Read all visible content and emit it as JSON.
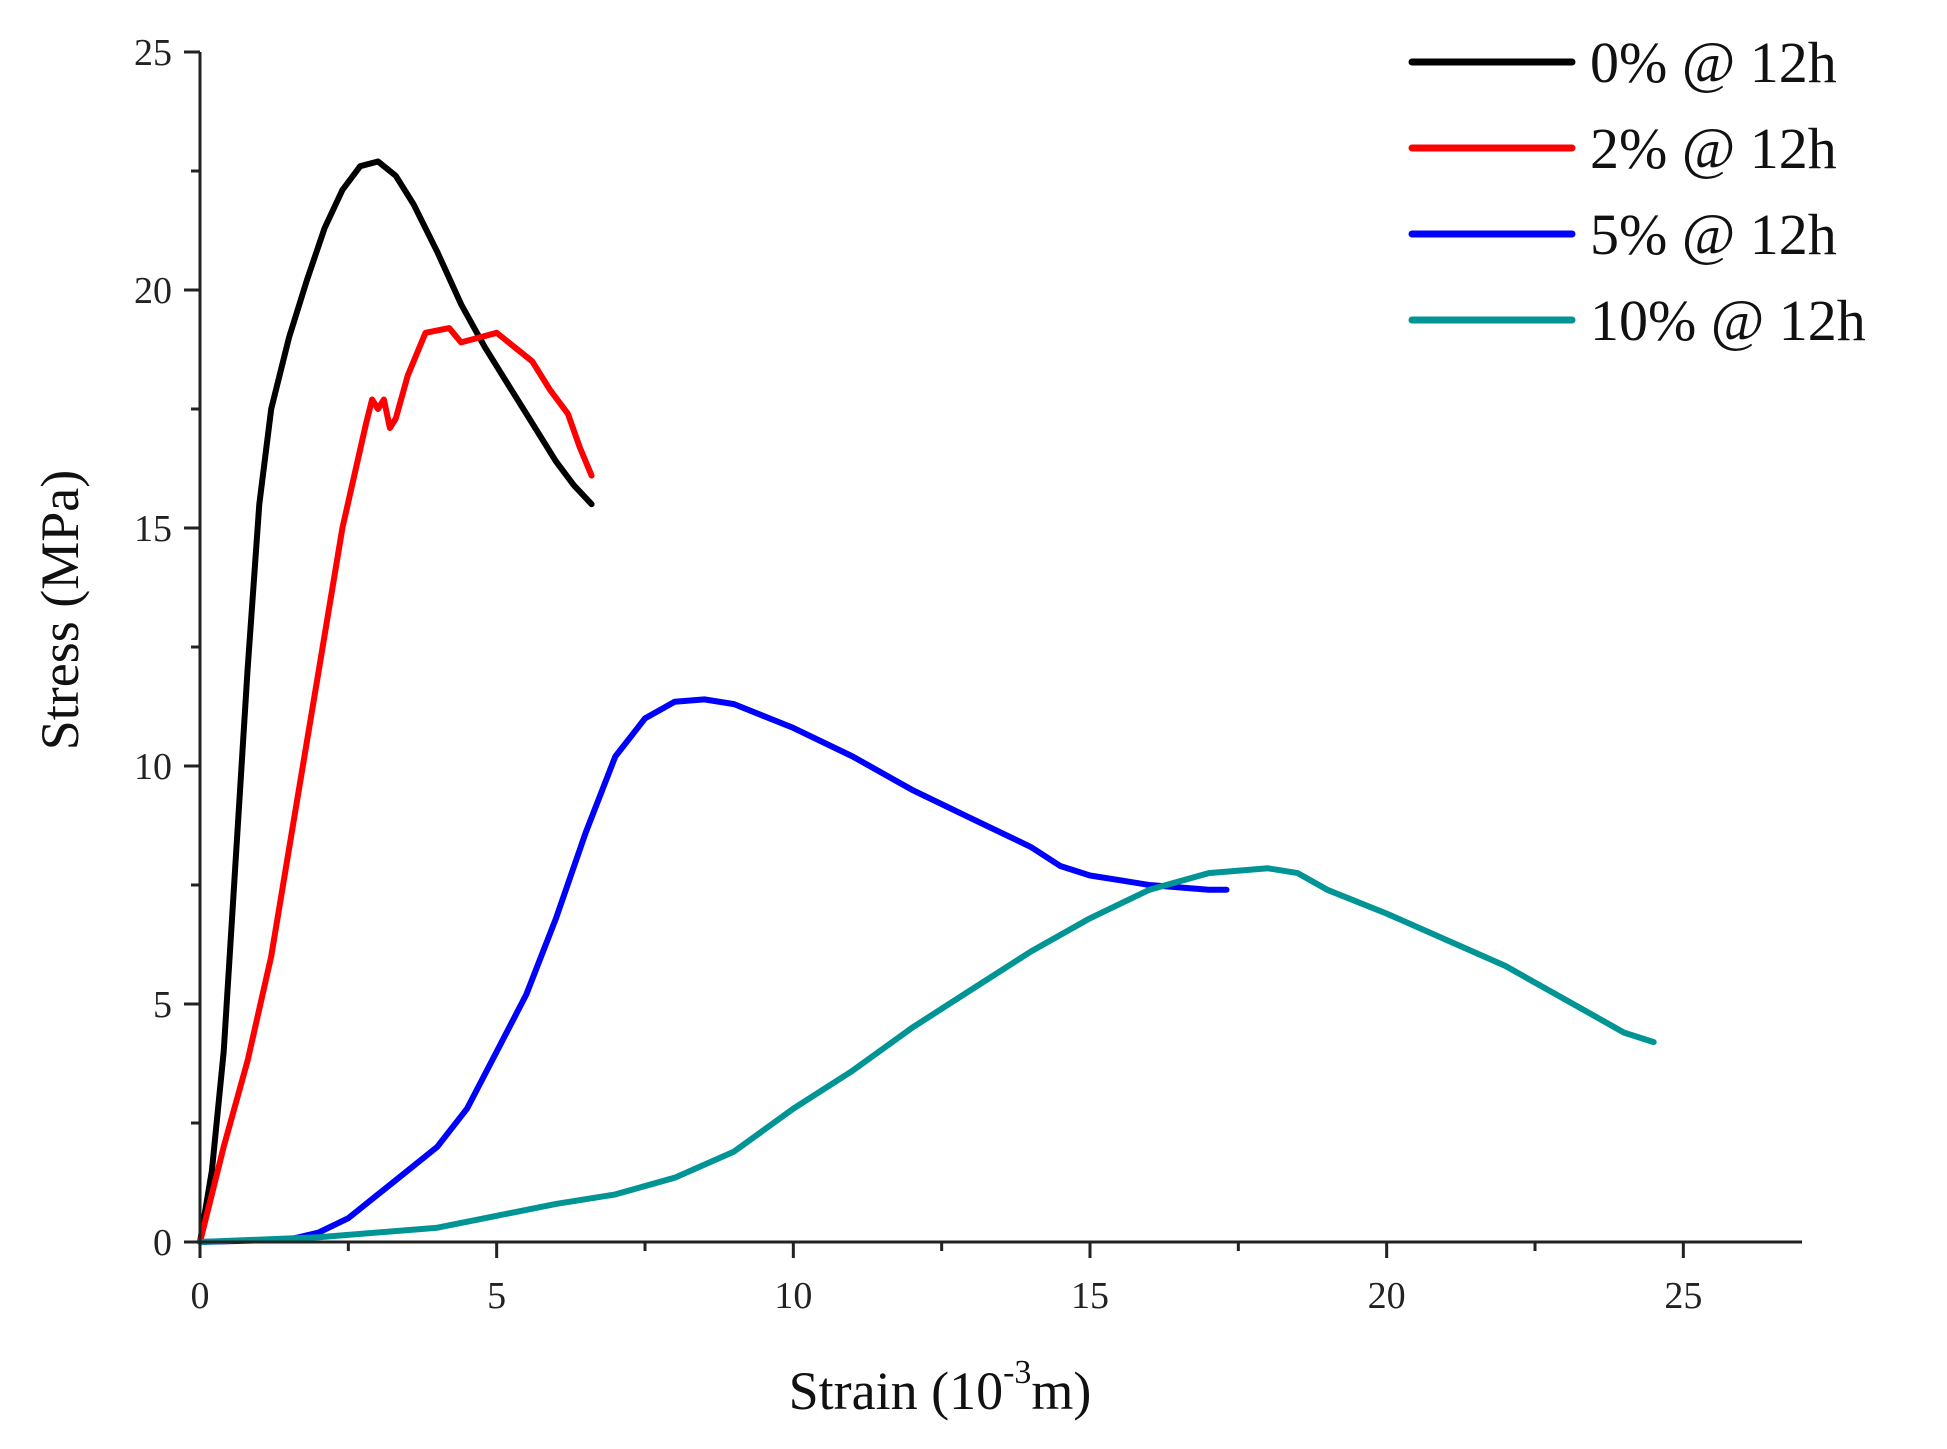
{
  "chart_data": {
    "type": "line",
    "title": "",
    "xlabel": "Strain (10",
    "xlabel_sup": "-3",
    "xlabel_suffix": "m)",
    "ylabel": "Stress (MPa)",
    "xlim": [
      0,
      27
    ],
    "ylim": [
      0,
      25
    ],
    "x_ticks": [
      0,
      5,
      10,
      15,
      20,
      25
    ],
    "y_ticks": [
      0,
      5,
      10,
      15,
      20,
      25
    ],
    "x_tick_labels": [
      "0",
      "5",
      "10",
      "15",
      "20",
      "25"
    ],
    "y_tick_labels": [
      "0",
      "5",
      "10",
      "15",
      "20",
      "25"
    ],
    "grid": false,
    "legend_position": "top-right",
    "series": [
      {
        "name": "0%  @ 12h",
        "color": "#000000",
        "points": [
          [
            0,
            0
          ],
          [
            0.2,
            1.5
          ],
          [
            0.4,
            4
          ],
          [
            0.6,
            8
          ],
          [
            0.8,
            12
          ],
          [
            1.0,
            15.5
          ],
          [
            1.2,
            17.5
          ],
          [
            1.5,
            19
          ],
          [
            1.8,
            20.2
          ],
          [
            2.1,
            21.3
          ],
          [
            2.4,
            22.1
          ],
          [
            2.7,
            22.6
          ],
          [
            3.0,
            22.7
          ],
          [
            3.3,
            22.4
          ],
          [
            3.6,
            21.8
          ],
          [
            4.0,
            20.8
          ],
          [
            4.4,
            19.7
          ],
          [
            4.8,
            18.8
          ],
          [
            5.2,
            18
          ],
          [
            5.6,
            17.2
          ],
          [
            6.0,
            16.4
          ],
          [
            6.3,
            15.9
          ],
          [
            6.6,
            15.5
          ]
        ]
      },
      {
        "name": "2%  @ 12h",
        "color": "#ff0000",
        "points": [
          [
            0,
            0
          ],
          [
            0.4,
            2
          ],
          [
            0.8,
            3.8
          ],
          [
            1.2,
            6
          ],
          [
            1.6,
            9
          ],
          [
            2.0,
            12
          ],
          [
            2.4,
            15
          ],
          [
            2.8,
            17.2
          ],
          [
            2.9,
            17.7
          ],
          [
            3.0,
            17.5
          ],
          [
            3.1,
            17.7
          ],
          [
            3.2,
            17.1
          ],
          [
            3.3,
            17.3
          ],
          [
            3.5,
            18.2
          ],
          [
            3.8,
            19.1
          ],
          [
            4.2,
            19.2
          ],
          [
            4.4,
            18.9
          ],
          [
            4.7,
            19
          ],
          [
            5.0,
            19.1
          ],
          [
            5.3,
            18.8
          ],
          [
            5.6,
            18.5
          ],
          [
            5.9,
            17.9
          ],
          [
            6.2,
            17.4
          ],
          [
            6.4,
            16.7
          ],
          [
            6.6,
            16.1
          ]
        ]
      },
      {
        "name": "5%  @ 12h",
        "color": "#0000ff",
        "points": [
          [
            0,
            0
          ],
          [
            1.5,
            0.05
          ],
          [
            2.0,
            0.2
          ],
          [
            2.5,
            0.5
          ],
          [
            3.0,
            1.0
          ],
          [
            3.5,
            1.5
          ],
          [
            4.0,
            2
          ],
          [
            4.5,
            2.8
          ],
          [
            5.0,
            4
          ],
          [
            5.5,
            5.2
          ],
          [
            6.0,
            6.8
          ],
          [
            6.5,
            8.6
          ],
          [
            7.0,
            10.2
          ],
          [
            7.5,
            11
          ],
          [
            8.0,
            11.35
          ],
          [
            8.5,
            11.4
          ],
          [
            9.0,
            11.3
          ],
          [
            10.0,
            10.8
          ],
          [
            11.0,
            10.2
          ],
          [
            12.0,
            9.5
          ],
          [
            13.0,
            8.9
          ],
          [
            14.0,
            8.3
          ],
          [
            14.5,
            7.9
          ],
          [
            15.0,
            7.7
          ],
          [
            15.5,
            7.6
          ],
          [
            16.0,
            7.5
          ],
          [
            17.0,
            7.4
          ],
          [
            17.3,
            7.4
          ]
        ]
      },
      {
        "name": "10% @ 12h",
        "color": "#009494",
        "points": [
          [
            0,
            0
          ],
          [
            2.0,
            0.1
          ],
          [
            4.0,
            0.3
          ],
          [
            5.0,
            0.55
          ],
          [
            6.0,
            0.8
          ],
          [
            7.0,
            1.0
          ],
          [
            8.0,
            1.35
          ],
          [
            9.0,
            1.9
          ],
          [
            10.0,
            2.8
          ],
          [
            11.0,
            3.6
          ],
          [
            12.0,
            4.5
          ],
          [
            13.0,
            5.3
          ],
          [
            14.0,
            6.1
          ],
          [
            15.0,
            6.8
          ],
          [
            16.0,
            7.4
          ],
          [
            17.0,
            7.75
          ],
          [
            18.0,
            7.85
          ],
          [
            18.5,
            7.75
          ],
          [
            19.0,
            7.4
          ],
          [
            20.0,
            6.9
          ],
          [
            21.0,
            6.35
          ],
          [
            22.0,
            5.8
          ],
          [
            23.0,
            5.1
          ],
          [
            24.0,
            4.4
          ],
          [
            24.5,
            4.2
          ]
        ]
      }
    ]
  }
}
